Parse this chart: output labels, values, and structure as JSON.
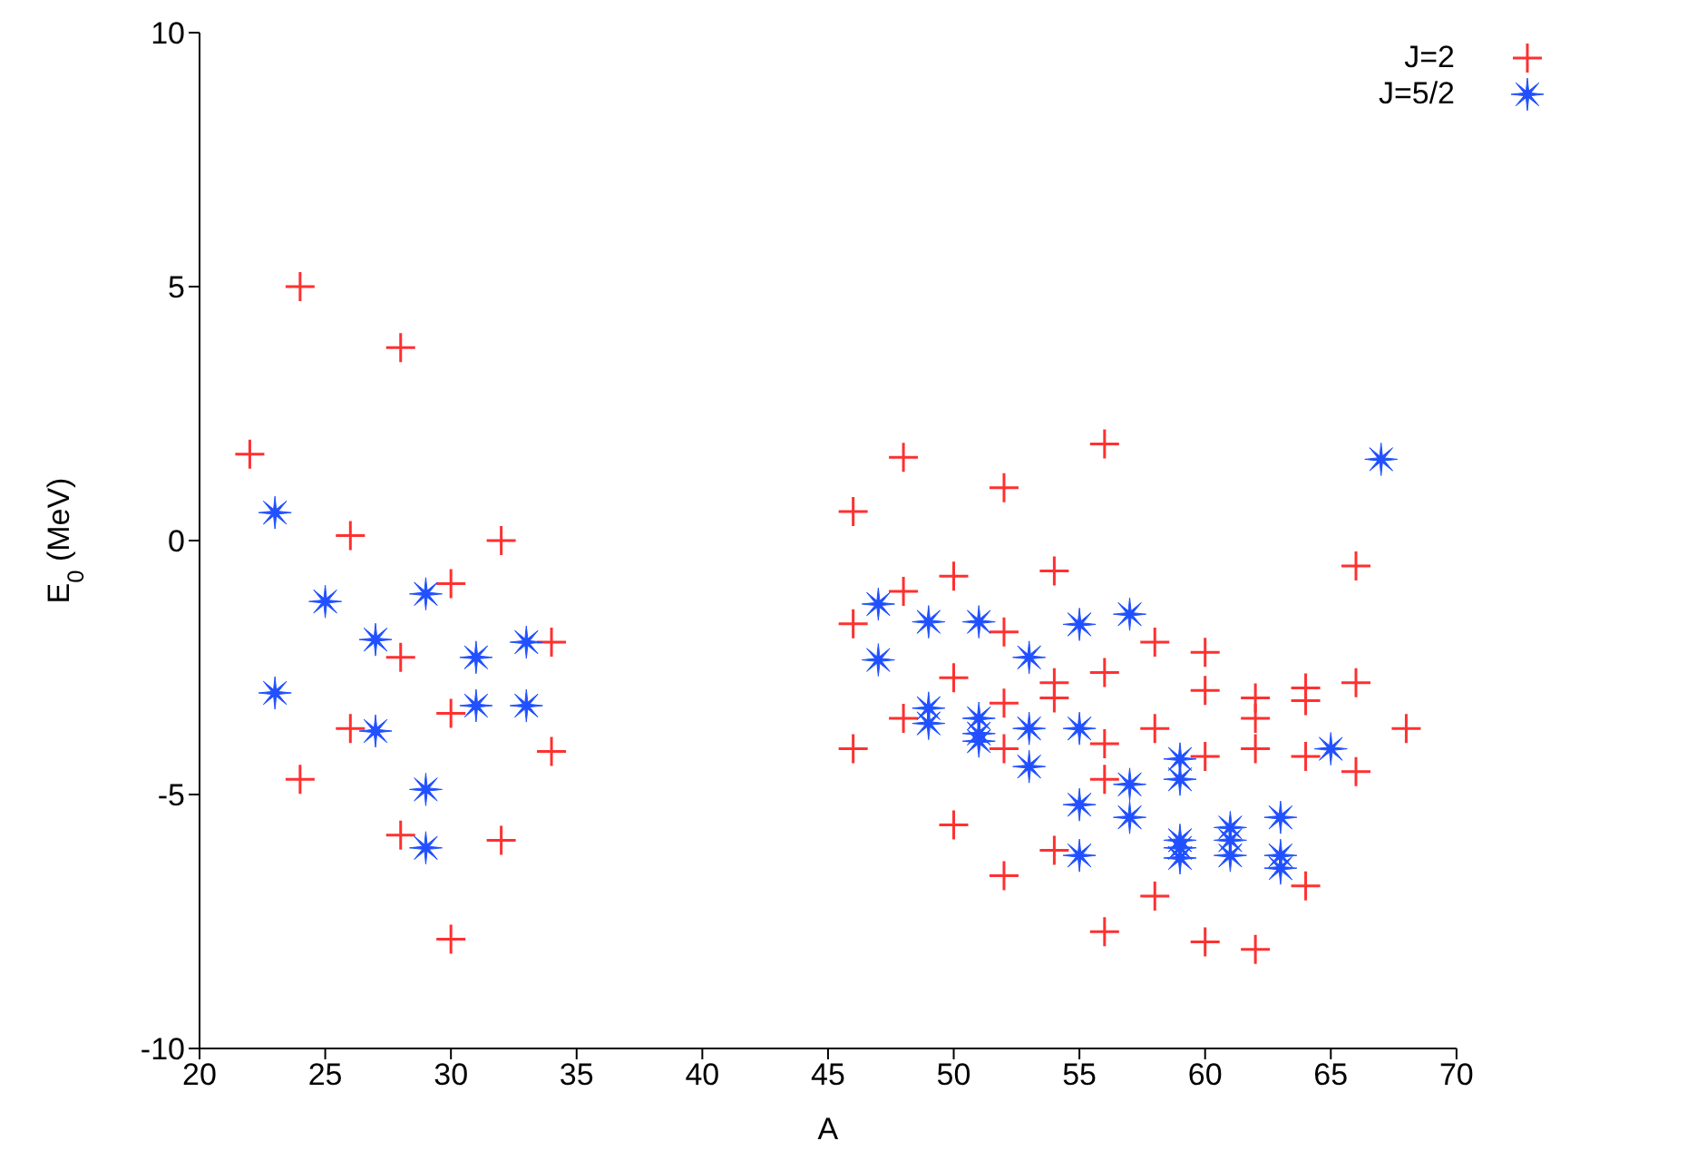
{
  "chart_data": {
    "type": "scatter",
    "xlabel": "A",
    "ylabel": "E$_{0}$ (MeV)",
    "xlim": [
      20,
      70
    ],
    "xticks": [
      20,
      25,
      30,
      35,
      40,
      45,
      50,
      55,
      60,
      65,
      70
    ],
    "ylim": [
      -10,
      10
    ],
    "yticks": [
      -10,
      -5,
      0,
      5,
      10
    ],
    "grid": false,
    "legend": "top right",
    "series": [
      {
        "name": "J=2",
        "color": "#ff3030",
        "marker": "cross",
        "x": [
          22,
          24,
          24,
          26,
          26,
          28,
          28,
          28,
          30,
          30,
          30,
          32,
          32,
          34,
          34,
          48,
          56,
          46,
          52,
          54,
          50,
          48,
          46,
          52,
          54,
          54,
          56,
          50,
          52,
          48,
          46,
          52,
          56,
          56,
          50,
          54,
          52,
          56,
          66,
          58,
          60,
          60,
          62,
          62,
          62,
          64,
          64,
          64,
          66,
          66,
          68,
          58,
          60,
          58,
          60,
          62,
          64
        ],
        "values": [
          1.7,
          5.0,
          -4.7,
          0.1,
          -3.7,
          3.8,
          -2.3,
          -5.8,
          -0.85,
          -3.4,
          -7.85,
          0,
          -5.9,
          -2.0,
          -4.15,
          1.64,
          1.9,
          0.57,
          1.04,
          -0.6,
          -0.7,
          -1.0,
          -1.64,
          -1.8,
          -2.8,
          -3.1,
          -2.6,
          -2.7,
          -3.2,
          -3.5,
          -4.1,
          -4.1,
          -4.0,
          -4.7,
          -5.6,
          -6.1,
          -6.6,
          -7.7,
          -0.5,
          -2.0,
          -2.2,
          -2.95,
          -3.1,
          -3.5,
          -4.1,
          -2.9,
          -3.15,
          -4.25,
          -2.8,
          -4.55,
          -3.7,
          -3.7,
          -4.25,
          -7.0,
          -7.9,
          -8.05,
          -6.8
        ]
      },
      {
        "name": "J=5/2",
        "color": "#2050ff",
        "marker": "star",
        "x": [
          23,
          23,
          25,
          27,
          27,
          29,
          29,
          29,
          31,
          31,
          33,
          33,
          47,
          47,
          49,
          49,
          49,
          51,
          51,
          51,
          51,
          53,
          53,
          53,
          55,
          55,
          55,
          55,
          57,
          57,
          57,
          67,
          65,
          59,
          59,
          59,
          59,
          59,
          61,
          61,
          61,
          63,
          63,
          63
        ],
        "values": [
          0.55,
          -3.0,
          -1.2,
          -1.95,
          -3.75,
          -1.05,
          -4.9,
          -6.05,
          -2.3,
          -3.25,
          -2.0,
          -3.25,
          -1.25,
          -2.35,
          -1.6,
          -3.3,
          -3.6,
          -1.6,
          -3.5,
          -3.8,
          -3.95,
          -2.3,
          -3.7,
          -4.45,
          -1.65,
          -3.7,
          -5.2,
          -6.2,
          -1.45,
          -4.8,
          -5.45,
          1.6,
          -4.1,
          -4.3,
          -4.7,
          -5.9,
          -6.05,
          -6.25,
          -5.65,
          -5.9,
          -6.2,
          -5.45,
          -6.2,
          -6.45
        ]
      }
    ]
  }
}
